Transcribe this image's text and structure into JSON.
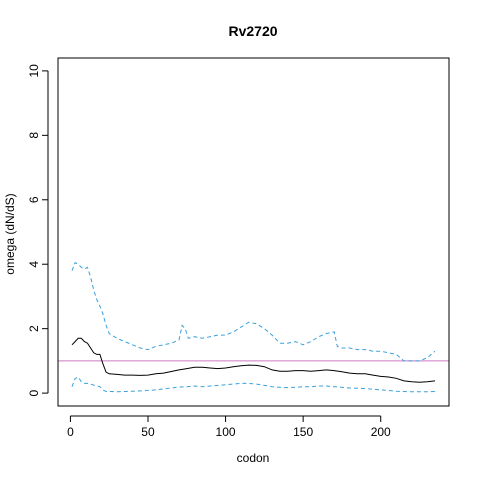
{
  "chart_data": {
    "type": "line",
    "title": "Rv2720",
    "xlabel": "codon",
    "ylabel": "omega (dN/dS)",
    "xlim": [
      -8,
      244
    ],
    "ylim": [
      -0.4,
      10.4
    ],
    "x_ticks": [
      0,
      50,
      100,
      150,
      200
    ],
    "y_ticks": [
      0,
      2,
      4,
      6,
      8,
      10
    ],
    "grid": false,
    "reference_line": {
      "y": 1,
      "color": "#cc79c4"
    },
    "series": [
      {
        "role": "omega",
        "style": "solid",
        "color": "#000000",
        "x": [
          1,
          3,
          5,
          7,
          9,
          11,
          13,
          15,
          17,
          19,
          21,
          23,
          25,
          30,
          35,
          40,
          45,
          50,
          55,
          60,
          65,
          70,
          75,
          80,
          85,
          90,
          95,
          100,
          105,
          110,
          115,
          120,
          125,
          130,
          135,
          140,
          145,
          150,
          155,
          160,
          165,
          170,
          175,
          180,
          185,
          190,
          195,
          200,
          205,
          210,
          215,
          220,
          225,
          230,
          235
        ],
        "y": [
          1.5,
          1.6,
          1.7,
          1.7,
          1.6,
          1.55,
          1.4,
          1.25,
          1.2,
          1.2,
          0.9,
          0.65,
          0.6,
          0.58,
          0.56,
          0.56,
          0.55,
          0.56,
          0.6,
          0.62,
          0.67,
          0.72,
          0.76,
          0.8,
          0.8,
          0.78,
          0.76,
          0.78,
          0.82,
          0.85,
          0.87,
          0.86,
          0.82,
          0.72,
          0.68,
          0.68,
          0.7,
          0.7,
          0.68,
          0.7,
          0.72,
          0.7,
          0.66,
          0.62,
          0.6,
          0.6,
          0.56,
          0.52,
          0.5,
          0.46,
          0.38,
          0.35,
          0.34,
          0.35,
          0.38
        ]
      },
      {
        "role": "upper bound",
        "style": "dashed",
        "color": "#3aa0dc",
        "x": [
          1,
          3,
          5,
          7,
          9,
          11,
          13,
          15,
          17,
          19,
          21,
          23,
          25,
          30,
          35,
          40,
          45,
          50,
          55,
          60,
          65,
          70,
          72,
          74,
          76,
          80,
          85,
          90,
          95,
          100,
          105,
          110,
          115,
          120,
          125,
          130,
          135,
          140,
          145,
          150,
          155,
          160,
          165,
          170,
          172,
          175,
          180,
          185,
          190,
          195,
          200,
          205,
          210,
          215,
          220,
          225,
          230,
          235
        ],
        "y": [
          3.8,
          4.05,
          4.0,
          3.9,
          3.85,
          3.9,
          3.6,
          3.2,
          2.9,
          2.7,
          2.45,
          2.1,
          1.85,
          1.7,
          1.6,
          1.5,
          1.4,
          1.35,
          1.45,
          1.5,
          1.55,
          1.65,
          2.1,
          2.0,
          1.7,
          1.75,
          1.7,
          1.75,
          1.8,
          1.8,
          1.9,
          2.05,
          2.2,
          2.15,
          2.0,
          1.8,
          1.55,
          1.55,
          1.6,
          1.5,
          1.6,
          1.75,
          1.85,
          1.9,
          1.45,
          1.4,
          1.4,
          1.35,
          1.35,
          1.3,
          1.3,
          1.25,
          1.2,
          1.0,
          1.0,
          1.0,
          1.1,
          1.3
        ]
      },
      {
        "role": "lower bound",
        "style": "dashed",
        "color": "#3aa0dc",
        "x": [
          1,
          3,
          5,
          7,
          9,
          11,
          13,
          15,
          17,
          19,
          21,
          23,
          25,
          30,
          35,
          40,
          45,
          50,
          55,
          60,
          65,
          70,
          75,
          80,
          85,
          90,
          95,
          100,
          105,
          110,
          115,
          120,
          125,
          130,
          135,
          140,
          145,
          150,
          155,
          160,
          165,
          170,
          175,
          180,
          185,
          190,
          195,
          200,
          205,
          210,
          215,
          220,
          225,
          230,
          235
        ],
        "y": [
          0.2,
          0.45,
          0.5,
          0.35,
          0.3,
          0.3,
          0.28,
          0.25,
          0.22,
          0.2,
          0.1,
          0.05,
          0.05,
          0.04,
          0.05,
          0.06,
          0.07,
          0.08,
          0.1,
          0.13,
          0.16,
          0.19,
          0.2,
          0.22,
          0.2,
          0.22,
          0.24,
          0.26,
          0.28,
          0.3,
          0.3,
          0.28,
          0.24,
          0.2,
          0.18,
          0.17,
          0.18,
          0.2,
          0.2,
          0.22,
          0.22,
          0.2,
          0.18,
          0.16,
          0.15,
          0.14,
          0.12,
          0.1,
          0.08,
          0.06,
          0.05,
          0.04,
          0.04,
          0.04,
          0.05
        ]
      }
    ]
  }
}
